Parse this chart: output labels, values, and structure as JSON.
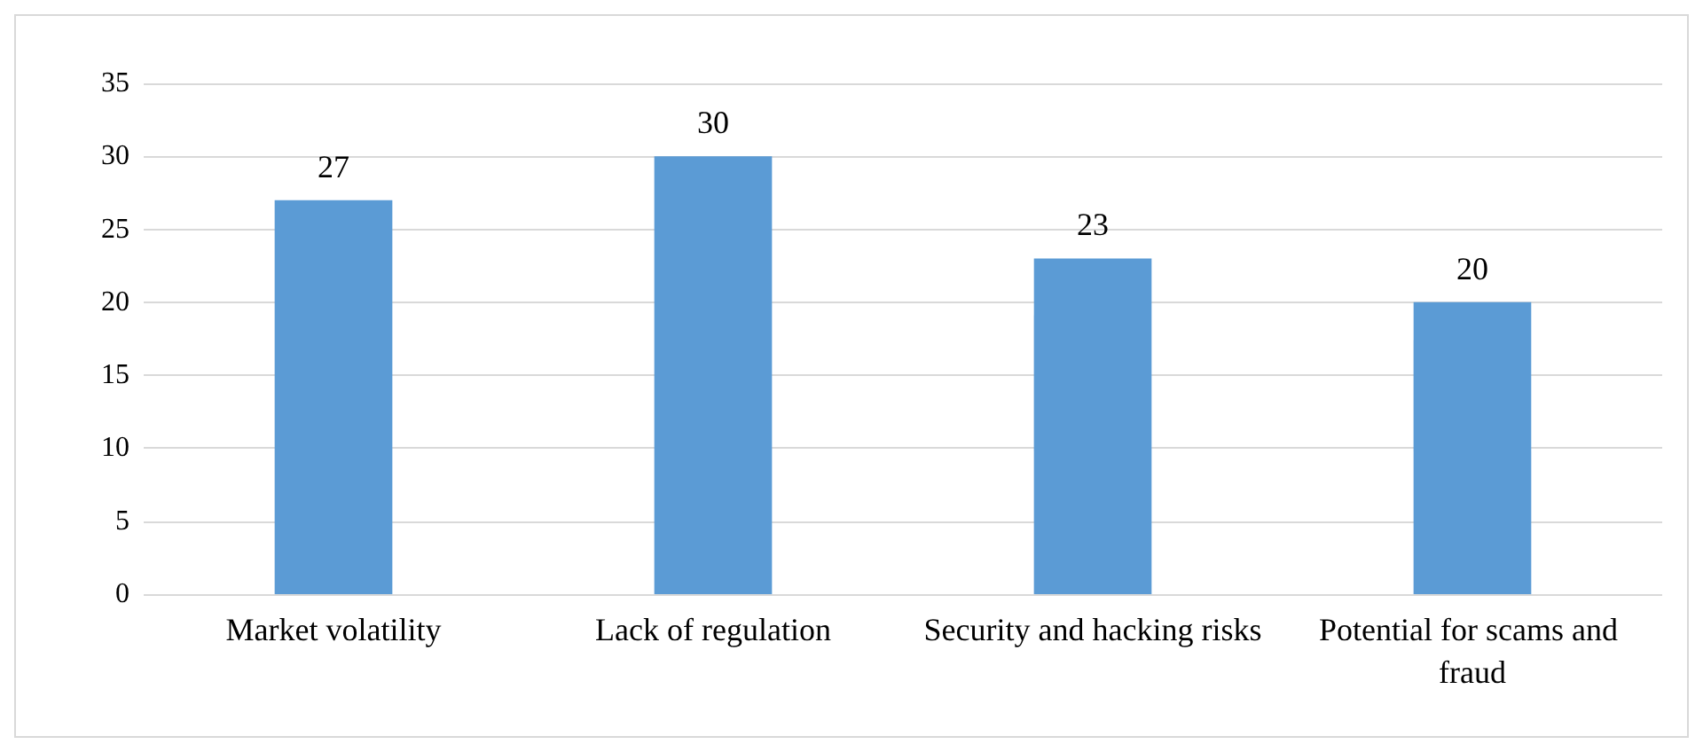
{
  "chart_data": {
    "type": "bar",
    "categories": [
      "Market volatility",
      "Lack of regulation",
      "Security and hacking risks",
      "Potential for scams and fraud"
    ],
    "values": [
      27,
      30,
      23,
      20
    ],
    "color": "#5b9bd5",
    "ylim": [
      0,
      35
    ],
    "yticks": [
      0,
      5,
      10,
      15,
      20,
      25,
      30,
      35
    ],
    "grid": "y",
    "data_labels": true
  }
}
